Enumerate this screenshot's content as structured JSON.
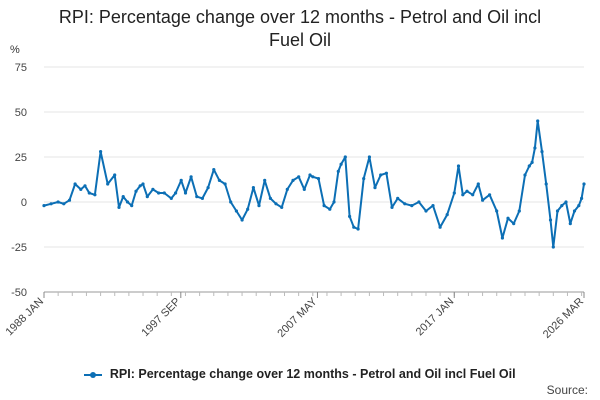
{
  "chart_data": {
    "type": "line",
    "title": "RPI: Percentage change over 12 months - Petrol and Oil incl Fuel Oil",
    "title_lines": [
      "RPI: Percentage change over 12 months - Petrol and Oil incl",
      "Fuel Oil"
    ],
    "ylabel": "%",
    "ylim": [
      -50,
      75
    ],
    "yticks": [
      75,
      50,
      25,
      0,
      -25,
      -50
    ],
    "xlim": [
      1988.0,
      2026.17
    ],
    "xticks": [
      {
        "label": "1988 JAN",
        "value": 1988.0
      },
      {
        "label": "1997 SEP",
        "value": 1997.67
      },
      {
        "label": "2007 MAY",
        "value": 2007.33
      },
      {
        "label": "2017 JAN",
        "value": 2017.0
      },
      {
        "label": "2026 MAR",
        "value": 2026.17
      }
    ],
    "grid": true,
    "legend_position": "bottom",
    "series": [
      {
        "name": "RPI: Percentage change over 12 months - Petrol and Oil incl Fuel Oil",
        "color": "#0c6fb5",
        "x": [
          1988.0,
          1988.5,
          1989.0,
          1989.4,
          1989.8,
          1990.2,
          1990.6,
          1990.9,
          1991.2,
          1991.6,
          1992.0,
          1992.5,
          1993.0,
          1993.3,
          1993.6,
          1993.9,
          1994.2,
          1994.5,
          1994.8,
          1995.0,
          1995.3,
          1995.7,
          1996.1,
          1996.5,
          1997.0,
          1997.3,
          1997.7,
          1998.0,
          1998.4,
          1998.8,
          1999.2,
          1999.6,
          2000.0,
          2000.4,
          2000.8,
          2001.2,
          2001.6,
          2002.0,
          2002.4,
          2002.8,
          2003.2,
          2003.6,
          2004.0,
          2004.4,
          2004.8,
          2005.2,
          2005.6,
          2006.0,
          2006.4,
          2006.8,
          2007.0,
          2007.4,
          2007.8,
          2008.2,
          2008.5,
          2008.8,
          2009.0,
          2009.3,
          2009.6,
          2009.9,
          2010.2,
          2010.6,
          2011.0,
          2011.4,
          2011.8,
          2012.2,
          2012.6,
          2013.0,
          2013.5,
          2014.0,
          2014.5,
          2015.0,
          2015.5,
          2016.0,
          2016.5,
          2017.0,
          2017.3,
          2017.6,
          2017.9,
          2018.3,
          2018.7,
          2019.0,
          2019.5,
          2020.0,
          2020.4,
          2020.8,
          2021.2,
          2021.6,
          2022.0,
          2022.3,
          2022.5,
          2022.7,
          2022.9,
          2023.2,
          2023.5,
          2023.8,
          2024.0,
          2024.3,
          2024.6,
          2024.9,
          2025.2,
          2025.5,
          2025.8,
          2026.0,
          2026.17
        ],
        "values": [
          -2,
          -1,
          0,
          -1,
          1,
          10,
          7,
          9,
          5,
          4,
          28,
          10,
          15,
          -3,
          3,
          0,
          -2,
          6,
          9,
          10,
          3,
          7,
          5,
          5,
          2,
          5,
          12,
          5,
          14,
          3,
          2,
          8,
          18,
          12,
          10,
          0,
          -5,
          -10,
          -4,
          8,
          -2,
          12,
          2,
          -1,
          -3,
          7,
          12,
          14,
          7,
          15,
          14,
          13,
          -2,
          -4,
          0,
          17,
          21,
          25,
          -8,
          -14,
          -15,
          13,
          25,
          8,
          15,
          16,
          -3,
          2,
          -1,
          -2,
          0,
          -5,
          -2,
          -14,
          -7,
          5,
          20,
          4,
          6,
          4,
          10,
          1,
          4,
          -5,
          -20,
          -9,
          -12,
          -5,
          15,
          20,
          22,
          30,
          45,
          28,
          10,
          -10,
          -25,
          -5,
          -2,
          0,
          -12,
          -5,
          -2,
          2,
          10
        ]
      }
    ]
  },
  "legend": {
    "label": "RPI: Percentage change over 12 months - Petrol and Oil incl Fuel Oil"
  },
  "source": "Source:"
}
